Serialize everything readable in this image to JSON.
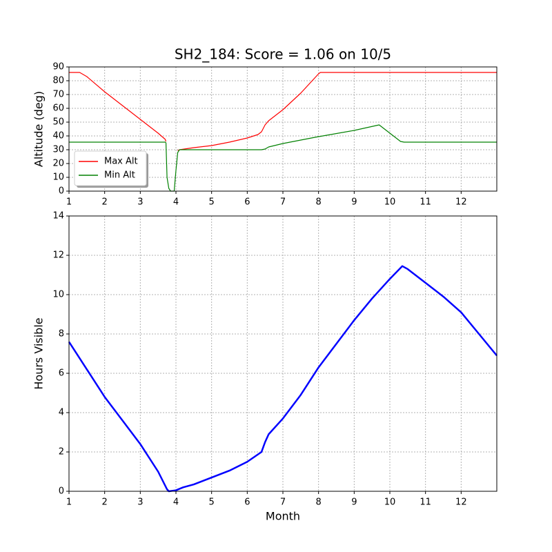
{
  "chart_data": [
    {
      "type": "line",
      "title": "SH2_184: Score = 1.06 on 10/5",
      "ylabel": "Altitude (deg)",
      "x": [
        1,
        1.3,
        1.5,
        2,
        2.5,
        3,
        3.5,
        3.7,
        3.72,
        3.75,
        3.8,
        3.85,
        3.95,
        4.0,
        4.05,
        4.1,
        4.5,
        5,
        5.5,
        6,
        6.3,
        6.4,
        6.5,
        6.6,
        7,
        7.5,
        8,
        8.05,
        9,
        9.7,
        10,
        10.3,
        10.4,
        11,
        12,
        13
      ],
      "series": [
        {
          "name": "Max Alt",
          "color": "#ff0000",
          "values": [
            86,
            86,
            83,
            72,
            62,
            52,
            42,
            37.5,
            36,
            null,
            null,
            null,
            null,
            null,
            29.5,
            30,
            31.5,
            33,
            35.5,
            38.5,
            41,
            43,
            48,
            51,
            59,
            71,
            85,
            86,
            86,
            86,
            86,
            86,
            86,
            86,
            86,
            86
          ]
        },
        {
          "name": "Min Alt",
          "color": "#008000",
          "values": [
            35.5,
            35.5,
            35.5,
            35.5,
            35.5,
            35.5,
            35.5,
            35.5,
            35,
            10,
            2,
            0,
            0,
            15,
            28,
            30,
            30,
            30,
            30,
            30,
            30,
            30,
            30.5,
            32,
            34.5,
            37,
            39.5,
            39.7,
            44,
            48,
            42,
            36,
            35.5,
            35.5,
            35.5,
            35.5
          ]
        }
      ],
      "xlim": [
        1,
        13
      ],
      "xticks": [
        1,
        2,
        3,
        4,
        5,
        6,
        7,
        8,
        9,
        10,
        11,
        12
      ],
      "ylim": [
        0,
        90
      ],
      "yticks": [
        0,
        10,
        20,
        30,
        40,
        50,
        60,
        70,
        80,
        90
      ],
      "grid": true,
      "legend": "lower left"
    },
    {
      "type": "line",
      "xlabel": "Month",
      "ylabel": "Hours Visible",
      "x": [
        1,
        1.5,
        2,
        2.5,
        3,
        3.5,
        3.75,
        3.8,
        4,
        4.2,
        4.5,
        5,
        5.5,
        6,
        6.4,
        6.5,
        6.6,
        7,
        7.5,
        8,
        8.5,
        9,
        9.5,
        10,
        10.35,
        10.5,
        11,
        11.5,
        12,
        12.5,
        13
      ],
      "series": [
        {
          "color": "#0000ff",
          "values": [
            7.6,
            6.2,
            4.8,
            3.6,
            2.4,
            1.0,
            0.1,
            0,
            0.05,
            0.2,
            0.35,
            0.7,
            1.05,
            1.5,
            2.0,
            2.5,
            2.9,
            3.7,
            4.9,
            6.3,
            7.5,
            8.7,
            9.8,
            10.8,
            11.45,
            11.3,
            10.6,
            9.9,
            9.1,
            8.0,
            6.9
          ]
        }
      ],
      "xlim": [
        1,
        13
      ],
      "xticks": [
        1,
        2,
        3,
        4,
        5,
        6,
        7,
        8,
        9,
        10,
        11,
        12
      ],
      "ylim": [
        0,
        14
      ],
      "yticks": [
        0,
        2,
        4,
        6,
        8,
        10,
        12,
        14
      ],
      "grid": true
    }
  ]
}
